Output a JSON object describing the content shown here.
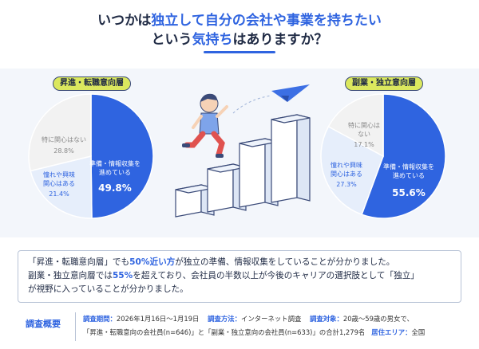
{
  "title": {
    "line1_a": "いつかは",
    "line1_hl": "独立して自分の会社や事業を持ちたい",
    "line2_a": "という",
    "line2_hl": "気持ち",
    "line2_b": "はありますか？"
  },
  "chart_data": [
    {
      "type": "pie",
      "title": "昇進・転職意向層",
      "slices": [
        {
          "label": "準備・情報収集を進めている",
          "value": 49.8,
          "display": "49.8%",
          "color": "#2f64e0"
        },
        {
          "label": "憧れや興味関心はある",
          "value": 21.4,
          "display": "21.4%",
          "color": "#e6eefb"
        },
        {
          "label": "特に関心はない",
          "value": 28.8,
          "display": "28.8%",
          "color": "#f2f2f2"
        }
      ]
    },
    {
      "type": "pie",
      "title": "副業・独立意向層",
      "slices": [
        {
          "label": "準備・情報収集を進めている",
          "value": 55.6,
          "display": "55.6%",
          "color": "#2f64e0"
        },
        {
          "label": "憧れや興味関心はある",
          "value": 27.3,
          "display": "27.3%",
          "color": "#e6eefb"
        },
        {
          "label": "特に関心はない",
          "value": 17.1,
          "display": "17.1%",
          "color": "#f2f2f2"
        }
      ]
    }
  ],
  "pie_labels": {
    "left": {
      "s0_l1": "準備・情報収集を",
      "s0_l2": "進めている",
      "s0_v": "49.8%",
      "s1_l1": "憧れや興味",
      "s1_l2": "関心はある",
      "s1_v": "21.4%",
      "s2_l1": "特に関心はない",
      "s2_v": "28.8%"
    },
    "right": {
      "s0_l1": "準備・情報収集を",
      "s0_l2": "進めている",
      "s0_v": "55.6%",
      "s1_l1": "憧れや興味",
      "s1_l2": "関心はある",
      "s1_v": "27.3%",
      "s2_l1": "特に関心は",
      "s2_l1b": "ない",
      "s2_v": "17.1%"
    }
  },
  "summary": {
    "l1_a": "「昇進・転職意向層」でも",
    "l1_b": "50%近い方",
    "l1_c": "が独立の準備、情報収集をしていることが分かりました。",
    "l2_a": "副業・独立意向層では",
    "l2_b": "55%",
    "l2_c": "を超えており、会社員の半数以上が今後のキャリアの選択肢として「独立」",
    "l3": "が視野に入っていることが分かりました。"
  },
  "footer": {
    "label": "調査概要",
    "period_k": "調査期間：",
    "period_v": "2026年1月16日〜1月19日",
    "method_k": "調査方法：",
    "method_v": "インターネット調査",
    "target_k": "調査対象：",
    "target_v": "20歳〜59歳の男女で、",
    "line2_v": "「昇進・転職意向の会社員(n=646)」と「副業・独立意向の会社員(n=633)」の合計1,279名",
    "area_k": "居住エリア：",
    "area_v": "全国"
  }
}
